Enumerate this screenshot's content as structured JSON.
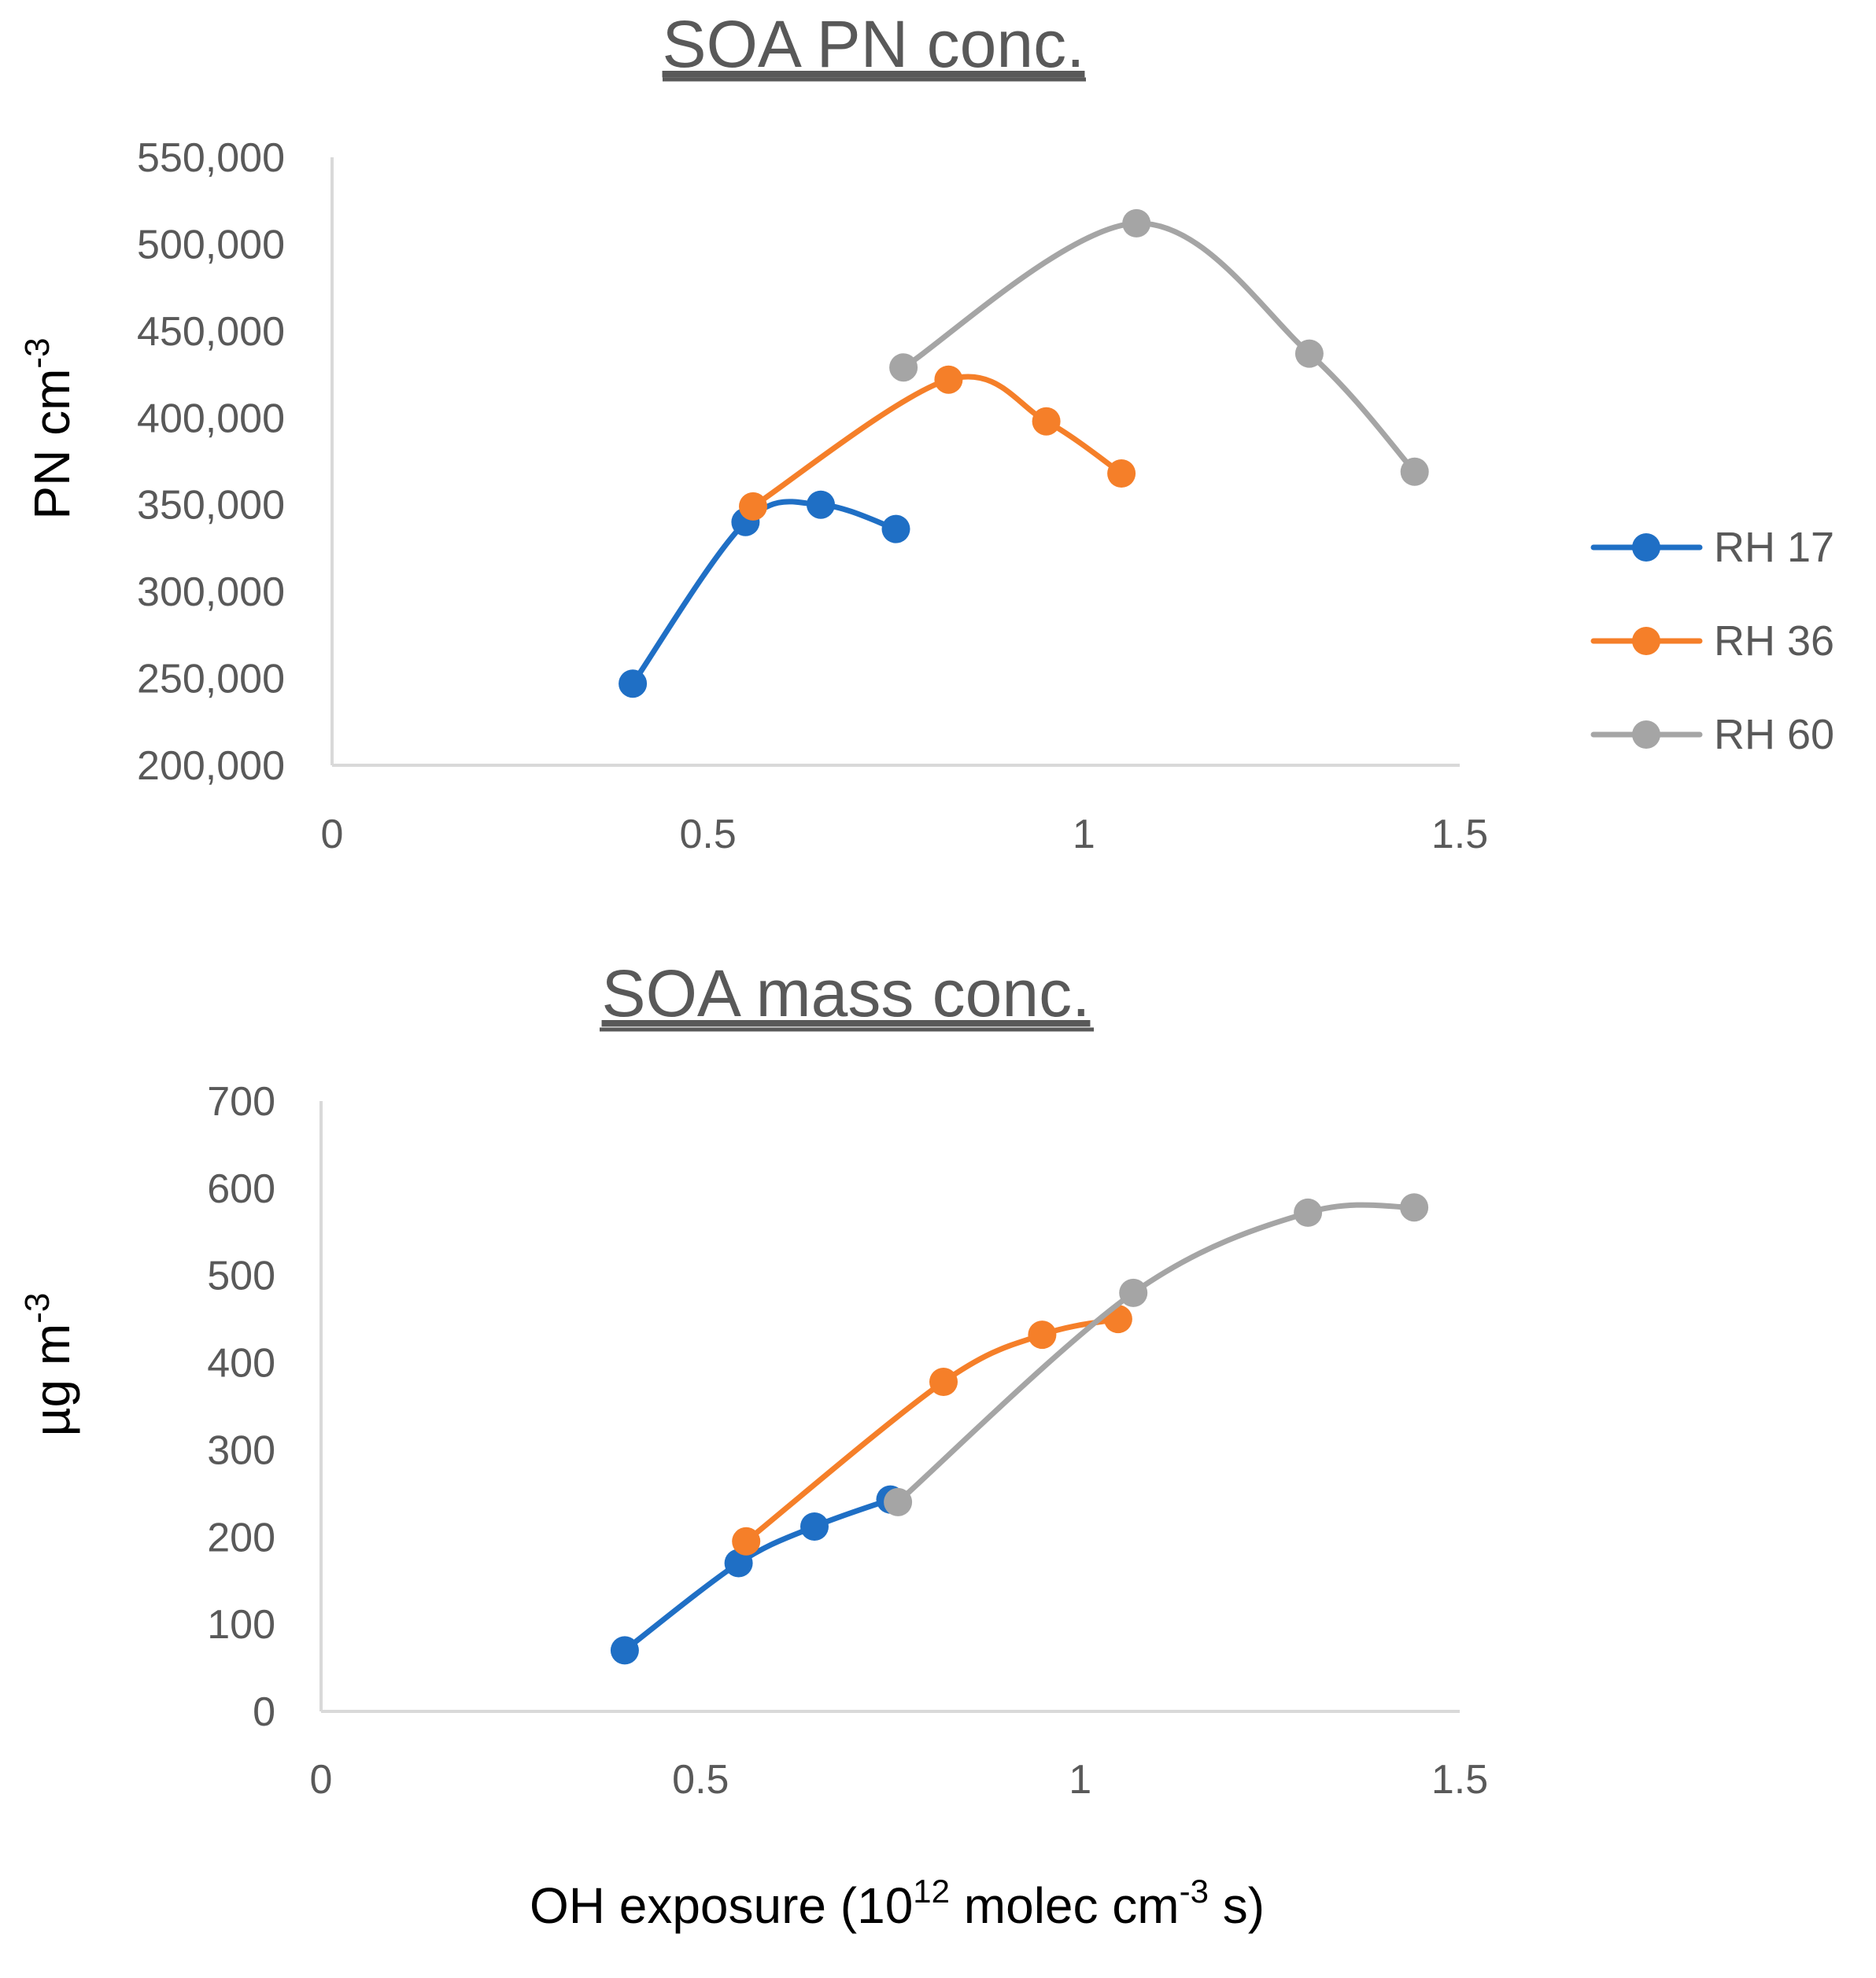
{
  "chart_data": [
    {
      "type": "line",
      "title": "SOA PN conc.",
      "xlabel": "",
      "ylabel": "PN cm",
      "ylabel_sup": "-3",
      "xlim": [
        0,
        1.5
      ],
      "ylim": [
        200000,
        550000
      ],
      "x_ticks": [
        0,
        0.5,
        1,
        1.5
      ],
      "x_tick_labels": [
        "0",
        "0.5",
        "1",
        "1.5"
      ],
      "y_ticks": [
        200000,
        250000,
        300000,
        350000,
        400000,
        450000,
        500000,
        550000
      ],
      "y_tick_labels": [
        "200,000",
        "250,000",
        "300,000",
        "350,000",
        "400,000",
        "450,000",
        "500,000",
        "550,000"
      ],
      "grid": false,
      "series": [
        {
          "name": "RH 17",
          "color": "#1f6fc5",
          "x": [
            0.4,
            0.55,
            0.65,
            0.75
          ],
          "y": [
            247000,
            340000,
            350000,
            336000
          ]
        },
        {
          "name": "RH 36",
          "color": "#f57f29",
          "x": [
            0.56,
            0.82,
            0.95,
            1.05
          ],
          "y": [
            349000,
            422000,
            398000,
            368000
          ]
        },
        {
          "name": "RH 60",
          "color": "#a5a5a5",
          "x": [
            0.76,
            1.07,
            1.3,
            1.44
          ],
          "y": [
            429000,
            512000,
            437000,
            369000
          ]
        }
      ]
    },
    {
      "type": "line",
      "title": "SOA mass conc.",
      "xlabel": "OH exposure (10",
      "xlabel_sup1": "12",
      "xlabel_mid": " molec cm",
      "xlabel_sup2": "-3",
      "xlabel_end": " s)",
      "ylabel": "µg m",
      "ylabel_sup": "-3",
      "xlim": [
        0,
        1.5
      ],
      "ylim": [
        0,
        700
      ],
      "x_ticks": [
        0,
        0.5,
        1,
        1.5
      ],
      "x_tick_labels": [
        "0",
        "0.5",
        "1",
        "1.5"
      ],
      "y_ticks": [
        0,
        100,
        200,
        300,
        400,
        500,
        600,
        700
      ],
      "y_tick_labels": [
        "0",
        "100",
        "200",
        "300",
        "400",
        "500",
        "600",
        "700"
      ],
      "grid": false,
      "series": [
        {
          "name": "RH 17",
          "color": "#1f6fc5",
          "x": [
            0.4,
            0.55,
            0.65,
            0.75
          ],
          "y": [
            70,
            170,
            212,
            243
          ]
        },
        {
          "name": "RH 36",
          "color": "#f57f29",
          "x": [
            0.56,
            0.82,
            0.95,
            1.05
          ],
          "y": [
            195,
            378,
            432,
            450
          ]
        },
        {
          "name": "RH 60",
          "color": "#a5a5a5",
          "x": [
            0.76,
            1.07,
            1.3,
            1.44
          ],
          "y": [
            240,
            480,
            572,
            578
          ]
        }
      ]
    }
  ],
  "legend": {
    "position": "right",
    "entries": [
      {
        "name": "RH 17",
        "color": "#1f6fc5"
      },
      {
        "name": "RH 36",
        "color": "#f57f29"
      },
      {
        "name": "RH 60",
        "color": "#a5a5a5"
      }
    ]
  }
}
